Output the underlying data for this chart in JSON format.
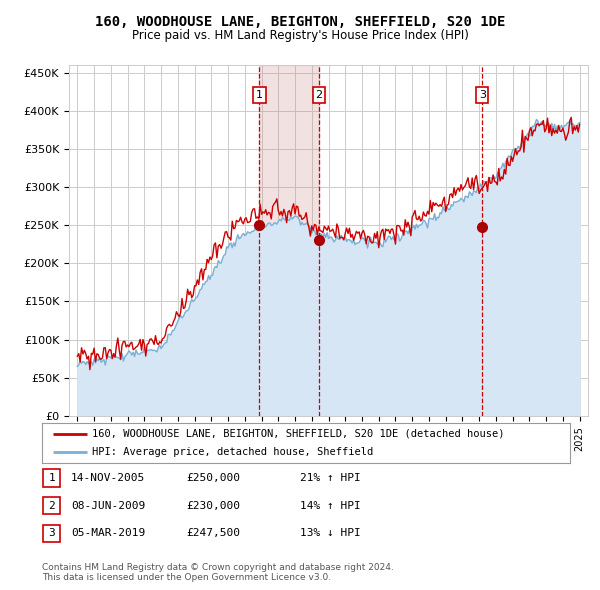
{
  "title": "160, WOODHOUSE LANE, BEIGHTON, SHEFFIELD, S20 1DE",
  "subtitle": "Price paid vs. HM Land Registry's House Price Index (HPI)",
  "ylim": [
    0,
    460000
  ],
  "yticks": [
    0,
    50000,
    100000,
    150000,
    200000,
    250000,
    300000,
    350000,
    400000,
    450000
  ],
  "ytick_labels": [
    "£0",
    "£50K",
    "£100K",
    "£150K",
    "£200K",
    "£250K",
    "£300K",
    "£350K",
    "£400K",
    "£450K"
  ],
  "background_color": "#ffffff",
  "grid_color": "#cccccc",
  "hpi_fill_color": "#d6e6f5",
  "hpi_line_color": "#7bafd4",
  "property_color": "#cc0000",
  "sale_marker_color": "#aa0000",
  "sale_points": [
    {
      "date_num": 2005.87,
      "price": 250000,
      "label": "1"
    },
    {
      "date_num": 2009.44,
      "price": 230000,
      "label": "2"
    },
    {
      "date_num": 2019.18,
      "price": 247500,
      "label": "3"
    }
  ],
  "vline_dates": [
    2005.87,
    2009.44,
    2019.18
  ],
  "vline_color": "#cc0000",
  "shade_between": [
    2005.87,
    2009.44
  ],
  "shade_color": "#f0d0d0",
  "legend_property": "160, WOODHOUSE LANE, BEIGHTON, SHEFFIELD, S20 1DE (detached house)",
  "legend_hpi": "HPI: Average price, detached house, Sheffield",
  "table_rows": [
    {
      "num": "1",
      "date": "14-NOV-2005",
      "price": "£250,000",
      "hpi": "21% ↑ HPI"
    },
    {
      "num": "2",
      "date": "08-JUN-2009",
      "price": "£230,000",
      "hpi": "14% ↑ HPI"
    },
    {
      "num": "3",
      "date": "05-MAR-2019",
      "price": "£247,500",
      "hpi": "13% ↓ HPI"
    }
  ],
  "footnote": "Contains HM Land Registry data © Crown copyright and database right 2024.\nThis data is licensed under the Open Government Licence v3.0.",
  "xlim_start": 1994.5,
  "xlim_end": 2025.5
}
